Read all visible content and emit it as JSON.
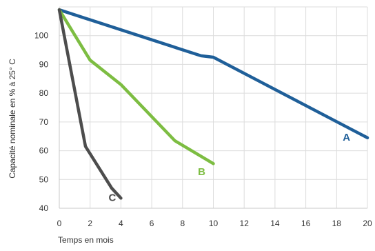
{
  "chart_data": {
    "type": "line",
    "xlabel": "Temps en mois",
    "ylabel": "Capacité nominale en % à 25° C",
    "xlim": [
      0,
      20
    ],
    "ylim": [
      40,
      110
    ],
    "xticks": [
      0,
      2,
      4,
      6,
      8,
      10,
      12,
      14,
      16,
      18,
      20
    ],
    "yticks": [
      40,
      50,
      60,
      70,
      80,
      90,
      100
    ],
    "grid": true,
    "series": [
      {
        "name": "A",
        "color": "#1f5f99",
        "points": [
          [
            0,
            109
          ],
          [
            9.2,
            93
          ],
          [
            10,
            92.5
          ],
          [
            20,
            64.5
          ]
        ]
      },
      {
        "name": "B",
        "color": "#7dbd42",
        "points": [
          [
            0,
            109
          ],
          [
            2,
            91.5
          ],
          [
            4,
            83
          ],
          [
            7.5,
            63.5
          ],
          [
            10,
            55.5
          ]
        ]
      },
      {
        "name": "C",
        "color": "#4d4d4d",
        "points": [
          [
            0,
            109
          ],
          [
            1.7,
            61.5
          ],
          [
            3.4,
            47
          ],
          [
            4,
            43.5
          ]
        ]
      }
    ],
    "series_labels": [
      {
        "text": "A",
        "color": "#1f5f99",
        "x": 18.4,
        "y": 63.5
      },
      {
        "text": "B",
        "color": "#7dbd42",
        "x": 9.0,
        "y": 51.5
      },
      {
        "text": "C",
        "color": "#4d4d4d",
        "x": 3.2,
        "y": 42.5
      }
    ]
  }
}
